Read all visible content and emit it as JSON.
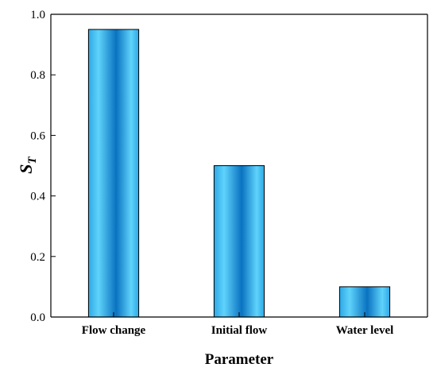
{
  "chart_data": {
    "type": "bar",
    "categories": [
      "Flow change",
      "Initial flow",
      "Water level"
    ],
    "values": [
      0.95,
      0.5,
      0.1
    ],
    "xlabel": "Parameter",
    "ylabel": {
      "main": "S",
      "subscript": "T"
    },
    "ylim": [
      0,
      1.0
    ],
    "yticks": [
      "0.0",
      "0.2",
      "0.4",
      "0.6",
      "0.8",
      "1.0"
    ],
    "grid": false,
    "legend": "none",
    "colors": {
      "bar_edge": "#1f5fa0",
      "bar_center": "#0a72c0",
      "bar_side": "#5fd3fb",
      "bar_outer": "#2ea8e6",
      "axis": "#000000"
    }
  }
}
